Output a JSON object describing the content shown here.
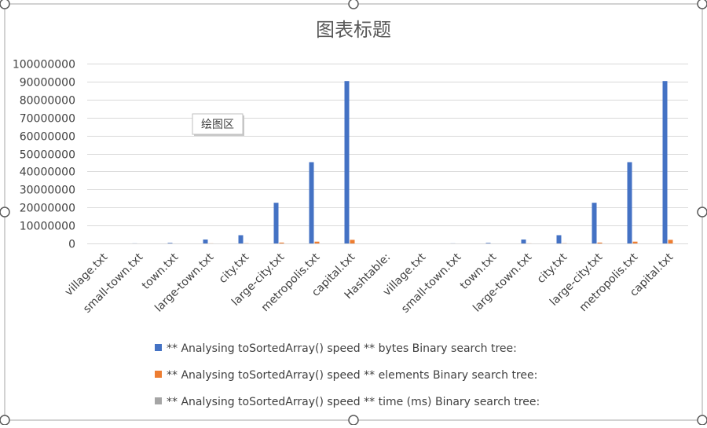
{
  "chart_data": {
    "type": "bar",
    "title": "图表标题",
    "xlabel": "",
    "ylabel": "",
    "ylim": [
      0,
      100000000
    ],
    "yticks": [
      0,
      10000000,
      20000000,
      30000000,
      40000000,
      50000000,
      60000000,
      70000000,
      80000000,
      90000000,
      100000000
    ],
    "grid": true,
    "legend_position": "bottom",
    "categories": [
      "village.txt",
      "small-town.txt",
      "town.txt",
      "large-town.txt",
      "city.txt",
      "large-city.txt",
      "metropolis.txt",
      "capital.txt",
      "Hashtable:",
      "village.txt",
      "small-town.txt",
      "town.txt",
      "large-town.txt",
      "city.txt",
      "large-city.txt",
      "metropolis.txt",
      "capital.txt"
    ],
    "series": [
      {
        "name": "** Analysing toSortedArray() speed ** bytes Binary search tree:",
        "color": "#4472C4",
        "values": [
          10000,
          50000,
          300000,
          2200000,
          4600000,
          22600000,
          45200000,
          90300000,
          0,
          10000,
          50000,
          300000,
          2200000,
          4600000,
          22600000,
          45200000,
          90300000
        ]
      },
      {
        "name": "** Analysing toSortedArray() speed ** elements Binary search tree:",
        "color": "#ED7D31",
        "values": [
          0,
          2000,
          10000,
          50000,
          100000,
          500000,
          1000000,
          2000000,
          0,
          0,
          2000,
          10000,
          50000,
          100000,
          500000,
          1000000,
          2000000
        ]
      },
      {
        "name": "** Analysing toSortedArray() speed ** time (ms) Binary search tree:",
        "color": "#A5A5A5",
        "values": [
          0,
          0,
          0,
          0,
          0,
          0,
          0,
          0,
          0,
          0,
          0,
          0,
          0,
          0,
          0,
          0,
          0
        ]
      }
    ]
  },
  "tooltip": {
    "text": "绘图区"
  }
}
